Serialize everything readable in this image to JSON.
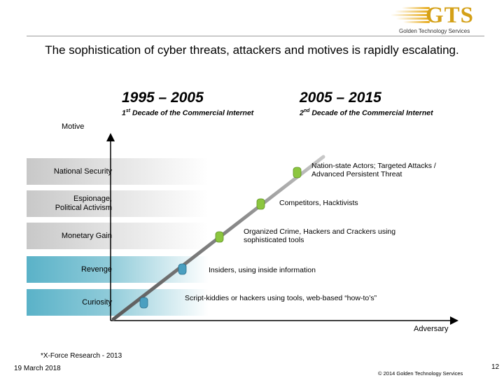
{
  "logo": {
    "brand": "GTS",
    "subtitle": "Golden Technology Services"
  },
  "headline": "The sophistication of cyber threats, attackers and motives is rapidly escalating.",
  "decades": [
    {
      "range": "1995 – 2005",
      "ordinal": "1",
      "ordinal_suffix": "st",
      "subtitle": " Decade of the Commercial Internet"
    },
    {
      "range": "2005 – 2015",
      "ordinal": "2",
      "ordinal_suffix": "nd",
      "subtitle": " Decade of the Commercial Internet"
    }
  ],
  "axes": {
    "y_label": "Motive",
    "x_label": "Adversary"
  },
  "motives": [
    {
      "label": "National Security",
      "style": "gray"
    },
    {
      "label": "Espionage,\nPolitical Activism",
      "style": "gray"
    },
    {
      "label": "Monetary Gain",
      "style": "gray"
    },
    {
      "label": "Revenge",
      "style": "blue"
    },
    {
      "label": "Curiosity",
      "style": "blue"
    }
  ],
  "adversaries": [
    {
      "label": "Script-kiddies or hackers using tools, web-based “how-to’s”",
      "color": "#4a9fc0"
    },
    {
      "label": "Insiders, using inside information",
      "color": "#4a9fc0"
    },
    {
      "label": "Organized Crime, Hackers and Crackers using\nsophisticated tools",
      "color": "#8cc63f"
    },
    {
      "label": "Competitors, Hacktivists",
      "color": "#8cc63f"
    },
    {
      "label": "Nation-state Actors; Targeted Attacks /\nAdvanced Persistent Threat",
      "color": "#8cc63f"
    }
  ],
  "footer": {
    "source": "*X-Force Research - 2013",
    "date": "19 March 2018",
    "copyright": "© 2014 Golden Technology Services",
    "page_number": "12"
  }
}
